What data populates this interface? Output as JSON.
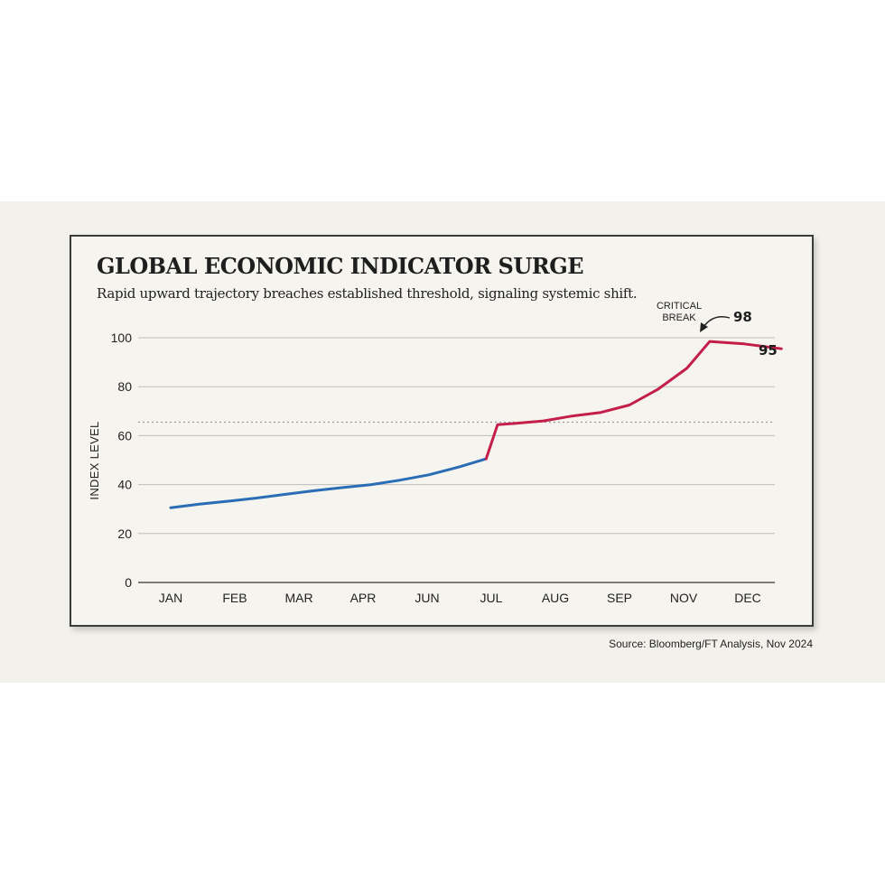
{
  "chart_data": {
    "type": "line",
    "title": "GLOBAL ECONOMIC INDICATOR SURGE",
    "subtitle": "Rapid upward trajectory breaches established threshold, signaling systemic shift.",
    "ylabel": "INDEX LEVEL",
    "xlabel": "",
    "ylim": [
      0,
      100
    ],
    "yticks": [
      0,
      20,
      40,
      60,
      80,
      100
    ],
    "xlim": [
      0,
      10
    ],
    "categories": [
      "JAN",
      "FEB",
      "MAR",
      "APR",
      "JUN",
      "JUL",
      "AUG",
      "SEP",
      "NOV",
      "DEC"
    ],
    "grid": true,
    "threshold": 65.5,
    "series": [
      {
        "color": "#2a6db5",
        "points": [
          [
            0,
            30.5
          ],
          [
            0.5,
            32
          ],
          [
            1,
            33.2
          ],
          [
            1.5,
            34.5
          ],
          [
            2,
            36
          ],
          [
            2.5,
            37.5
          ],
          [
            3,
            38.8
          ],
          [
            3.5,
            40
          ],
          [
            4,
            41.8
          ],
          [
            4.5,
            44
          ],
          [
            5,
            47
          ],
          [
            5.5,
            50.5
          ]
        ]
      },
      {
        "color": "#c41e4a",
        "points": [
          [
            5.5,
            50.5
          ],
          [
            5.7,
            64.5
          ],
          [
            6,
            65
          ],
          [
            6.5,
            66
          ],
          [
            7,
            68
          ],
          [
            7.5,
            69.5
          ],
          [
            8,
            72.5
          ],
          [
            8.5,
            79
          ],
          [
            9,
            87.5
          ],
          [
            9.4,
            98.5
          ],
          [
            10,
            97.5
          ],
          [
            10.65,
            95.5
          ]
        ]
      }
    ],
    "annotations": [
      {
        "line1": "CRITICAL",
        "line2": "BREAK"
      }
    ],
    "data_labels": [
      "98",
      "95"
    ],
    "source": "Source: Bloomberg/FT Analysis, Nov 2024"
  }
}
